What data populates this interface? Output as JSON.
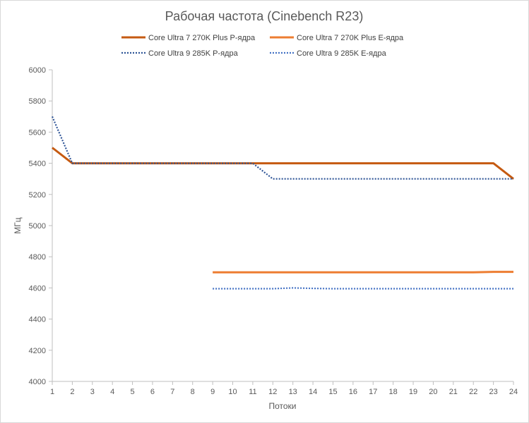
{
  "chart_data": {
    "type": "line",
    "title": "Рабочая частота (Cinebench R23)",
    "xlabel": "Потоки",
    "ylabel": "МГц",
    "x": [
      1,
      2,
      3,
      4,
      5,
      6,
      7,
      8,
      9,
      10,
      11,
      12,
      13,
      14,
      15,
      16,
      17,
      18,
      19,
      20,
      21,
      22,
      23,
      24
    ],
    "xlim": [
      1,
      24
    ],
    "ylim": [
      4000,
      6000
    ],
    "yticks": [
      4000,
      4200,
      4400,
      4600,
      4800,
      5000,
      5200,
      5400,
      5600,
      5800,
      6000
    ],
    "grid": false,
    "legend_position": "top",
    "series": [
      {
        "name": "Core Ultra 7 270K Plus P-ядра",
        "color": "#c55a11",
        "style": "solid",
        "values": [
          5500,
          5400,
          5400,
          5400,
          5400,
          5400,
          5400,
          5400,
          5400,
          5400,
          5400,
          5400,
          5400,
          5400,
          5400,
          5400,
          5400,
          5400,
          5400,
          5400,
          5400,
          5400,
          5400,
          5300
        ]
      },
      {
        "name": "Core Ultra 7 270K Plus E-ядра",
        "color": "#ed7d31",
        "style": "solid",
        "values": [
          null,
          null,
          null,
          null,
          null,
          null,
          null,
          null,
          4700,
          4700,
          4700,
          4700,
          4700,
          4700,
          4700,
          4700,
          4700,
          4700,
          4700,
          4700,
          4700,
          4700,
          4703,
          4703
        ]
      },
      {
        "name": "Core Ultra 9 285K P-ядра",
        "color": "#2f5597",
        "style": "dotted",
        "values": [
          5700,
          5400,
          5400,
          5400,
          5400,
          5400,
          5400,
          5400,
          5400,
          5400,
          5400,
          5300,
          5300,
          5300,
          5300,
          5300,
          5300,
          5300,
          5300,
          5300,
          5300,
          5300,
          5300,
          5300
        ]
      },
      {
        "name": "Core Ultra 9 285K E-ядра",
        "color": "#4472c4",
        "style": "dotted",
        "values": [
          null,
          null,
          null,
          null,
          null,
          null,
          null,
          null,
          4595,
          4595,
          4595,
          4595,
          4600,
          4597,
          4595,
          4595,
          4595,
          4595,
          4595,
          4595,
          4595,
          4595,
          4595,
          4595
        ]
      }
    ]
  }
}
